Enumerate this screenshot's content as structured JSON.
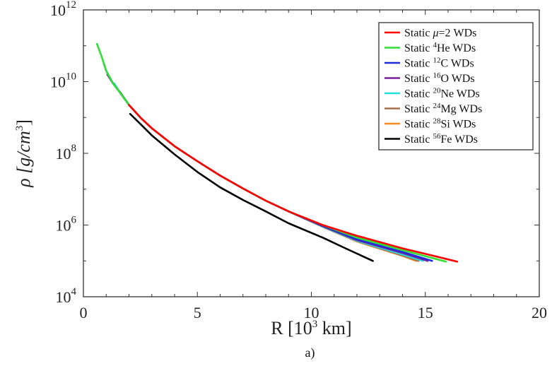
{
  "chart_data": {
    "type": "line",
    "title": "",
    "xlabel": "R [10",
    "xlabel_sup": "3",
    "xlabel_end": " km]",
    "ylabel": "ρ [g/cm",
    "ylabel_sup": "3",
    "ylabel_end": "]",
    "xlim": [
      0,
      20
    ],
    "ylim_log10": [
      4,
      12
    ],
    "yscale": "log",
    "x_ticks": [
      "0",
      "5",
      "10",
      "15",
      "20"
    ],
    "y_ticks": [
      {
        "base": "10",
        "exp": "4"
      },
      {
        "base": "10",
        "exp": "6"
      },
      {
        "base": "10",
        "exp": "8"
      },
      {
        "base": "10",
        "exp": "10"
      },
      {
        "base": "10",
        "exp": "12"
      }
    ],
    "legend_position": "top-right",
    "caption": "a)",
    "series": [
      {
        "legend_prefix": "Static ",
        "legend_italic": "μ",
        "legend_sup": "",
        "legend_suffix": "=2 WDs",
        "color": "#ff0000",
        "x": [
          2.0,
          2.5,
          3,
          4,
          5,
          6,
          7,
          8,
          9,
          10.5,
          12,
          14,
          15.5,
          16.4
        ],
        "log_rho": [
          9.35,
          9.0,
          8.7,
          8.2,
          7.78,
          7.38,
          7.02,
          6.68,
          6.38,
          6.0,
          5.7,
          5.35,
          5.12,
          4.98
        ]
      },
      {
        "legend_prefix": "Static ",
        "legend_italic": "",
        "legend_sup": "4",
        "legend_suffix": "He WDs",
        "color": "#33dd33",
        "x": [
          0.6,
          0.8,
          1.0,
          1.3,
          1.6,
          2.0,
          2.5,
          3,
          4,
          5,
          6,
          7,
          8,
          9,
          10.5,
          12,
          14,
          15.9
        ],
        "log_rho": [
          11.05,
          10.7,
          10.3,
          9.95,
          9.7,
          9.35,
          9.0,
          8.7,
          8.2,
          7.78,
          7.38,
          7.02,
          6.68,
          6.38,
          6.0,
          5.65,
          5.3,
          4.98
        ]
      },
      {
        "legend_prefix": "Static ",
        "legend_italic": "",
        "legend_sup": "12",
        "legend_suffix": "C WDs",
        "color": "#1f2bdd",
        "x": [
          0.9,
          1.0,
          1.3,
          1.6,
          2.0,
          2.5,
          3,
          4,
          5,
          6,
          7,
          8,
          9,
          10.5,
          12,
          14,
          15.3
        ],
        "log_rho": [
          10.5,
          10.3,
          9.95,
          9.7,
          9.35,
          9.0,
          8.7,
          8.2,
          7.78,
          7.38,
          7.02,
          6.68,
          6.38,
          5.98,
          5.6,
          5.25,
          5.0
        ]
      },
      {
        "legend_prefix": "Static ",
        "legend_italic": "",
        "legend_sup": "16",
        "legend_suffix": "O WDs",
        "color": "#7a1f9a",
        "x": [
          1.05,
          1.3,
          1.6,
          2.0,
          2.5,
          3,
          4,
          5,
          6,
          7,
          8,
          9,
          10.5,
          12,
          14,
          15.1
        ],
        "log_rho": [
          10.2,
          9.95,
          9.7,
          9.35,
          9.0,
          8.7,
          8.2,
          7.78,
          7.38,
          7.02,
          6.68,
          6.38,
          5.97,
          5.58,
          5.22,
          5.0
        ]
      },
      {
        "legend_prefix": "Static ",
        "legend_italic": "",
        "legend_sup": "20",
        "legend_suffix": "Ne WDs",
        "color": "#22e0e0",
        "x": [
          1.35,
          1.6,
          2.0,
          2.5,
          3,
          4,
          5,
          6,
          7,
          8,
          9,
          10.5,
          12,
          14,
          14.9
        ],
        "log_rho": [
          9.95,
          9.7,
          9.35,
          9.0,
          8.7,
          8.2,
          7.78,
          7.38,
          7.02,
          6.68,
          6.38,
          5.96,
          5.56,
          5.18,
          5.0
        ]
      },
      {
        "legend_prefix": "Static ",
        "legend_italic": "",
        "legend_sup": "24",
        "legend_suffix": "Mg WDs",
        "color": "#a8704f",
        "x": [
          1.6,
          2.0,
          2.5,
          3,
          4,
          5,
          6,
          7,
          8,
          9,
          10.5,
          12,
          14,
          14.7
        ],
        "log_rho": [
          9.72,
          9.35,
          9.0,
          8.7,
          8.2,
          7.78,
          7.38,
          7.02,
          6.68,
          6.38,
          5.95,
          5.55,
          5.15,
          5.0
        ]
      },
      {
        "legend_prefix": "Static ",
        "legend_italic": "",
        "legend_sup": "28",
        "legend_suffix": "Si WDs",
        "color": "#ff8c1a",
        "x": [
          1.9,
          2.0,
          2.5,
          3,
          4,
          5,
          6,
          7,
          8,
          9,
          10.5,
          12,
          14,
          14.6
        ],
        "log_rho": [
          9.45,
          9.35,
          9.0,
          8.7,
          8.2,
          7.78,
          7.38,
          7.02,
          6.68,
          6.38,
          5.95,
          5.54,
          5.14,
          5.0
        ]
      },
      {
        "legend_prefix": "Static ",
        "legend_italic": "",
        "legend_sup": "56",
        "legend_suffix": "Fe WDs",
        "color": "#000000",
        "x": [
          2.05,
          2.5,
          3,
          4,
          5,
          6,
          7,
          8,
          9,
          10.5,
          11.5,
          12.7
        ],
        "log_rho": [
          9.1,
          8.82,
          8.5,
          7.97,
          7.48,
          7.05,
          6.7,
          6.38,
          6.05,
          5.65,
          5.35,
          5.0
        ]
      }
    ]
  }
}
